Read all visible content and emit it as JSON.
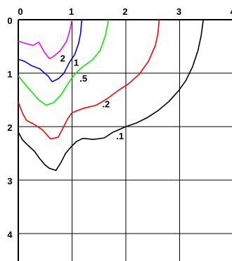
{
  "chart_data": {
    "type": "line",
    "title": "",
    "xlabel": "",
    "ylabel": "",
    "xlim": [
      0,
      4
    ],
    "ylim": [
      0,
      4.5
    ],
    "y_inverted": true,
    "grid": true,
    "x_ticks": [
      "0",
      "1",
      "2",
      "3",
      "4"
    ],
    "y_ticks": [
      "0",
      "1",
      "2",
      "3",
      "4"
    ],
    "series": [
      {
        "label": "2",
        "color": "#ff00ff",
        "label_at": [
          0.78,
          0.78
        ],
        "points": [
          [
            0.0,
            0.4
          ],
          [
            0.12,
            0.44
          ],
          [
            0.2,
            0.46
          ],
          [
            0.28,
            0.48
          ],
          [
            0.38,
            0.42
          ],
          [
            0.48,
            0.6
          ],
          [
            0.58,
            0.73
          ],
          [
            0.68,
            0.67
          ],
          [
            0.78,
            0.58
          ],
          [
            0.9,
            0.4
          ],
          [
            0.96,
            0.2
          ],
          [
            1.0,
            0.0
          ]
        ]
      },
      {
        "label": "1",
        "color": "#0000ff",
        "label_at": [
          1.03,
          0.86
        ],
        "points": [
          [
            0.0,
            0.74
          ],
          [
            0.12,
            0.78
          ],
          [
            0.25,
            0.86
          ],
          [
            0.4,
            0.92
          ],
          [
            0.55,
            1.05
          ],
          [
            0.63,
            1.16
          ],
          [
            0.75,
            1.1
          ],
          [
            0.85,
            1.0
          ],
          [
            0.95,
            0.8
          ],
          [
            1.05,
            0.65
          ],
          [
            1.12,
            0.45
          ],
          [
            1.16,
            0.25
          ],
          [
            1.18,
            0.0
          ]
        ]
      },
      {
        "label": ".5",
        "color": "#00ee00",
        "label_at": [
          1.14,
          1.16
        ],
        "points": [
          [
            0.0,
            1.05
          ],
          [
            0.12,
            1.2
          ],
          [
            0.25,
            1.35
          ],
          [
            0.38,
            1.5
          ],
          [
            0.52,
            1.6
          ],
          [
            0.66,
            1.55
          ],
          [
            0.8,
            1.4
          ],
          [
            0.92,
            1.2
          ],
          [
            1.05,
            1.02
          ],
          [
            1.2,
            0.88
          ],
          [
            1.38,
            0.75
          ],
          [
            1.52,
            0.58
          ],
          [
            1.62,
            0.3
          ],
          [
            1.68,
            0.0
          ]
        ]
      },
      {
        "label": ".2",
        "color": "#ff0000",
        "label_at": [
          1.56,
          1.64
        ],
        "points": [
          [
            0.0,
            1.54
          ],
          [
            0.08,
            1.75
          ],
          [
            0.15,
            1.88
          ],
          [
            0.3,
            1.96
          ],
          [
            0.45,
            2.06
          ],
          [
            0.6,
            2.23
          ],
          [
            0.74,
            2.2
          ],
          [
            0.82,
            2.05
          ],
          [
            0.92,
            1.85
          ],
          [
            1.0,
            1.74
          ],
          [
            1.2,
            1.66
          ],
          [
            1.45,
            1.6
          ],
          [
            1.65,
            1.48
          ],
          [
            1.85,
            1.33
          ],
          [
            2.05,
            1.2
          ],
          [
            2.25,
            1.02
          ],
          [
            2.42,
            0.78
          ],
          [
            2.55,
            0.48
          ],
          [
            2.6,
            0.24
          ],
          [
            2.62,
            0.0
          ]
        ]
      },
      {
        "label": ".1",
        "color": "#000000",
        "label_at": [
          1.82,
          2.24
        ],
        "points": [
          [
            0.0,
            2.1
          ],
          [
            0.08,
            2.25
          ],
          [
            0.18,
            2.35
          ],
          [
            0.3,
            2.46
          ],
          [
            0.4,
            2.6
          ],
          [
            0.5,
            2.72
          ],
          [
            0.58,
            2.78
          ],
          [
            0.7,
            2.82
          ],
          [
            0.8,
            2.66
          ],
          [
            0.88,
            2.5
          ],
          [
            0.98,
            2.38
          ],
          [
            1.08,
            2.28
          ],
          [
            1.2,
            2.22
          ],
          [
            1.4,
            2.24
          ],
          [
            1.6,
            2.21
          ],
          [
            1.75,
            2.11
          ],
          [
            2.0,
            2.0
          ],
          [
            2.2,
            1.93
          ],
          [
            2.4,
            1.83
          ],
          [
            2.6,
            1.7
          ],
          [
            2.8,
            1.53
          ],
          [
            2.98,
            1.33
          ],
          [
            3.12,
            1.13
          ],
          [
            3.24,
            0.88
          ],
          [
            3.34,
            0.58
          ],
          [
            3.4,
            0.3
          ],
          [
            3.44,
            0.0
          ]
        ]
      }
    ]
  }
}
